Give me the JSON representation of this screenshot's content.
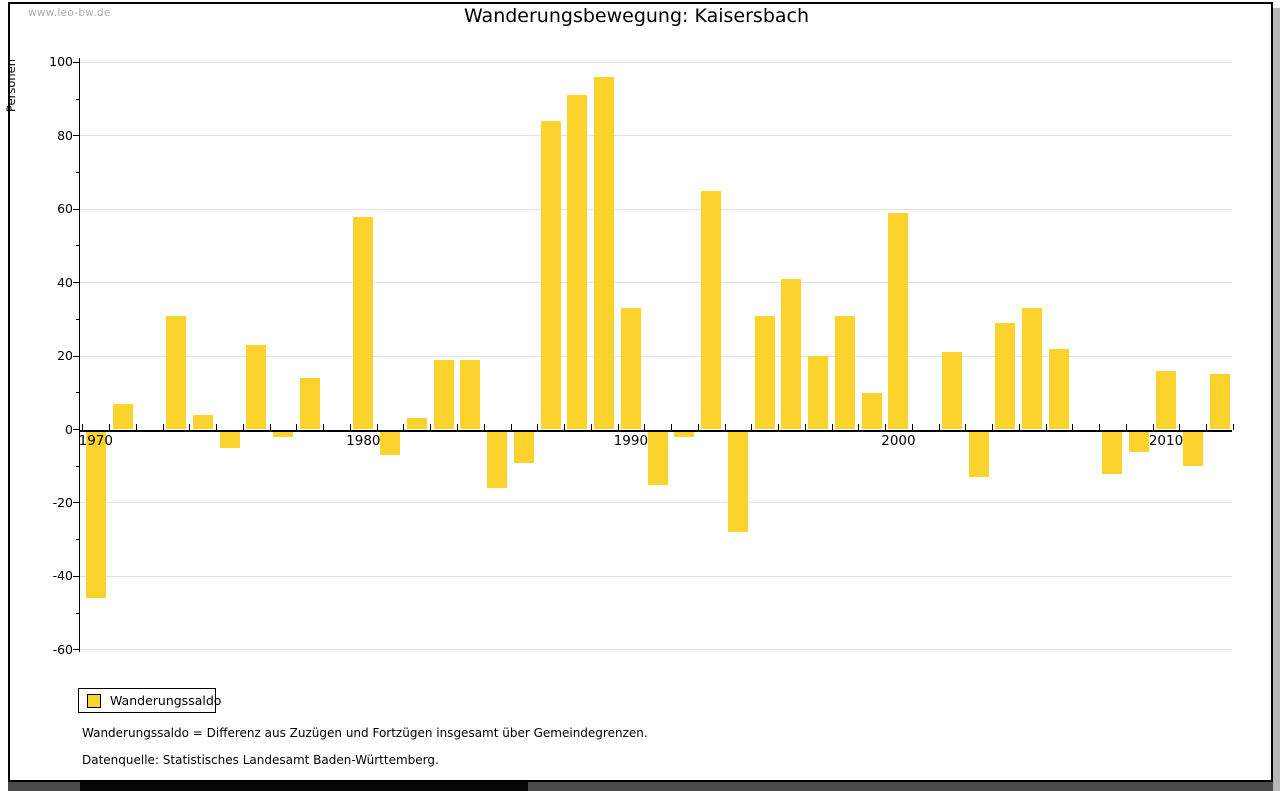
{
  "watermark": "www.leo-bw.de",
  "title": "Wanderungsbewegung: Kaisersbach",
  "legend": {
    "label": "Wanderungssaldo",
    "swatch_color": "#fcd22d"
  },
  "footnotes": {
    "definition": "Wanderungssaldo = Differenz aus Zuzügen und Fortzügen insgesamt über Gemeindegrenzen.",
    "source": "Datenquelle: Statistisches Landesamt Baden-Württemberg."
  },
  "chart_data": {
    "type": "bar",
    "title": "Wanderungsbewegung: Kaisersbach",
    "ylabel": "Personen",
    "series_name": "Wanderungssaldo",
    "years": [
      1970,
      1971,
      1972,
      1973,
      1974,
      1975,
      1976,
      1977,
      1978,
      1979,
      1980,
      1981,
      1982,
      1983,
      1984,
      1985,
      1986,
      1987,
      1988,
      1989,
      1990,
      1991,
      1992,
      1993,
      1994,
      1995,
      1996,
      1997,
      1998,
      1999,
      2000,
      2001,
      2002,
      2003,
      2004,
      2005,
      2006,
      2007,
      2008,
      2009,
      2010,
      2011,
      2012
    ],
    "values": [
      -46,
      7,
      0,
      31,
      4,
      -5,
      23,
      -2,
      14,
      0,
      58,
      -7,
      3,
      19,
      19,
      -16,
      -9,
      84,
      91,
      96,
      33,
      -15,
      -2,
      65,
      -28,
      31,
      41,
      20,
      31,
      10,
      59,
      0,
      21,
      -13,
      29,
      33,
      22,
      0,
      -12,
      -6,
      16,
      -10,
      15
    ],
    "ylim": [
      -60,
      100
    ],
    "ytick_interval": 20,
    "ytick_minor_interval": 10,
    "ytick_labels": [
      "100",
      "80",
      "60",
      "40",
      "20",
      "0",
      "-20",
      "-40",
      "-60"
    ],
    "x_labeled_ticks": [
      1970,
      1980,
      1990,
      2000,
      2010
    ],
    "bar_color": "#fcd22d",
    "grid": true,
    "legend_position": "bottom-left"
  }
}
